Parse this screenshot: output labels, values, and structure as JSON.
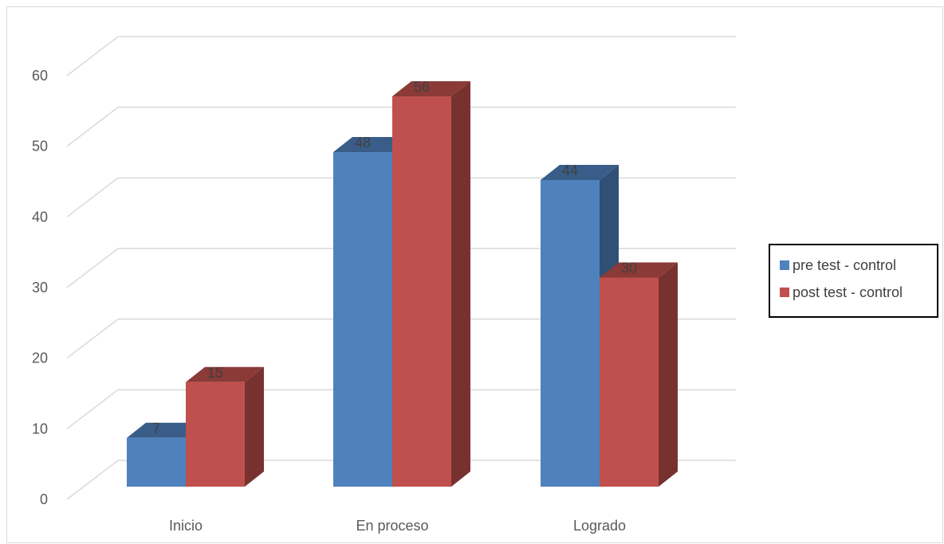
{
  "chart_data": {
    "type": "bar",
    "categories": [
      "Inicio",
      "En proceso",
      "Logrado"
    ],
    "series": [
      {
        "name": "pre test - control",
        "values": [
          7,
          48,
          44
        ],
        "color": "#4f81bd"
      },
      {
        "name": "post test - control",
        "values": [
          15,
          56,
          30
        ],
        "color": "#c0504d"
      }
    ],
    "ylim": [
      0,
      60
    ],
    "yticks": [
      0,
      10,
      20,
      30,
      40,
      50,
      60
    ],
    "grid": true,
    "style": "3d-clustered-column",
    "legend": {
      "position": "right"
    }
  }
}
